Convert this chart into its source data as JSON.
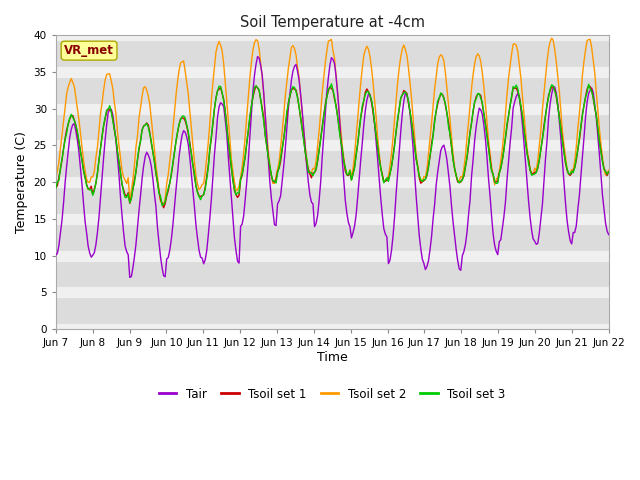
{
  "title": "Soil Temperature at -4cm",
  "xlabel": "Time",
  "ylabel": "Temperature (C)",
  "ylim": [
    0,
    40
  ],
  "yticks": [
    0,
    5,
    10,
    15,
    20,
    25,
    30,
    35,
    40
  ],
  "x_labels": [
    "Jun 7",
    "Jun 8",
    "Jun 9",
    "Jun 10",
    "Jun 11",
    "Jun 12",
    "Jun 13",
    "Jun 14",
    "Jun 15",
    "Jun 16",
    "Jun 17",
    "Jun 18",
    "Jun 19",
    "Jun 20",
    "Jun 21",
    "Jun 22"
  ],
  "colors": {
    "Tair": "#9900cc",
    "Tsoil1": "#cc0000",
    "Tsoil2": "#ff9900",
    "Tsoil3": "#00cc00"
  },
  "plot_bg_color": "#dcdcdc",
  "fig_bg_color": "#ffffff",
  "grid_color": "#f0f0f0",
  "annotation_text": "VR_met",
  "annotation_color": "#880000",
  "annotation_bg": "#ffff99",
  "annotation_edge": "#aaa800",
  "legend_labels": [
    "Tair",
    "Tsoil set 1",
    "Tsoil set 2",
    "Tsoil set 3"
  ],
  "tair_peak": [
    28,
    30,
    24,
    27,
    31,
    37,
    36,
    37,
    32,
    32,
    25,
    30,
    32,
    33,
    33
  ],
  "tair_min": [
    10,
    10,
    7,
    9.5,
    9,
    14,
    17,
    14,
    12.5,
    9,
    8,
    10,
    12,
    11.5,
    13
  ],
  "tsoil2_peak": [
    34,
    35,
    33,
    36.5,
    39,
    39.5,
    38.5,
    39.5,
    38.5,
    38.5,
    37.5,
    37.5,
    39,
    39.5,
    39.5
  ],
  "tsoil2_min": [
    20,
    20,
    17,
    19,
    19,
    20,
    21,
    21,
    20,
    20,
    20,
    20,
    21,
    21,
    21
  ],
  "tsoil13_peak": [
    29,
    30,
    28,
    29,
    33,
    33,
    33,
    33,
    32.5,
    32.5,
    32,
    32,
    33,
    33,
    33
  ],
  "tsoil13_min": [
    19,
    18,
    17,
    18,
    18,
    20,
    21,
    21,
    20,
    20,
    20,
    20,
    21,
    21,
    21
  ],
  "n_days": 15,
  "pts_per_day": 24
}
